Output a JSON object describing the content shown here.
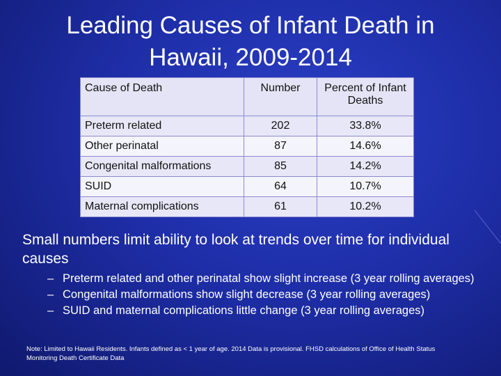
{
  "slide": {
    "title_line1": "Leading Causes of Infant Death in",
    "title_line2": "Hawaii, 2009-2014"
  },
  "table": {
    "headers": [
      "Cause of Death",
      "Number",
      "Percent of Infant Deaths"
    ],
    "rows": [
      {
        "cause": "Preterm related",
        "number": "202",
        "percent": "33.8%"
      },
      {
        "cause": "Other perinatal",
        "number": "87",
        "percent": "14.6%"
      },
      {
        "cause": "Congenital malformations",
        "number": "85",
        "percent": "14.2%"
      },
      {
        "cause": "SUID",
        "number": "64",
        "percent": "10.7%"
      },
      {
        "cause": "Maternal complications",
        "number": "61",
        "percent": "10.2%"
      }
    ]
  },
  "main_point": "Small numbers limit ability to look at trends over time for individual causes",
  "sub_points": {
    "dash": "–",
    "items": [
      "Preterm related and other perinatal show slight increase (3 year rolling averages)",
      "Congenital malformations show slight decrease (3 year rolling averages)",
      "SUID and maternal complications little change (3 year rolling averages)"
    ]
  },
  "note": "Note: Limited to Hawaii Residents. Infants defined as < 1 year of age. 2014 Data is provisional. FHSD calculations of Office of Health Status Monitoring Death Certificate Data"
}
